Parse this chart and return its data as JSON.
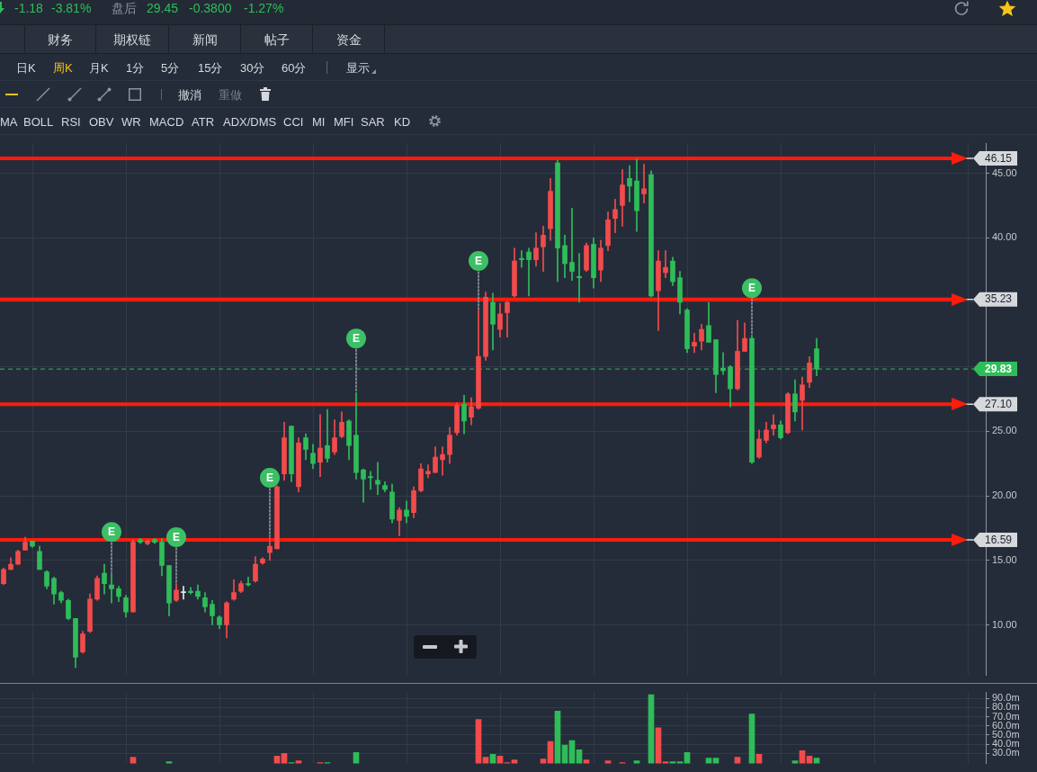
{
  "chart_data": [
    {
      "type": "candlestick",
      "categories": [
        null,
        null,
        null,
        null,
        null,
        null,
        null,
        null,
        null,
        null,
        null,
        null,
        null,
        null,
        null,
        null,
        null,
        null,
        null,
        null,
        null,
        null,
        null,
        null,
        null,
        null,
        null,
        null,
        null,
        null,
        null,
        null,
        null,
        null,
        null,
        null,
        null,
        null,
        null,
        null,
        null,
        null,
        null,
        null,
        null,
        null,
        null,
        null,
        null,
        null,
        null,
        null,
        null,
        null,
        null,
        null,
        null,
        null,
        null,
        null,
        null,
        null,
        null,
        null,
        null,
        null,
        null,
        null,
        null,
        null,
        null,
        null,
        null,
        null,
        null,
        null,
        null,
        null,
        null,
        null,
        null,
        null,
        null,
        null,
        null,
        null,
        null,
        null,
        null,
        null,
        null,
        null,
        null,
        null,
        null,
        null,
        null,
        null,
        null,
        null,
        null,
        null,
        null,
        null,
        null,
        null,
        null,
        null,
        null,
        null,
        null,
        null,
        null,
        null,
        null,
        null,
        null,
        null,
        null,
        null,
        null,
        null,
        null,
        null,
        null,
        null,
        null,
        null,
        null,
        null,
        null,
        null,
        null,
        null,
        null,
        null,
        null
      ],
      "ohlc": [
        [
          13.2,
          14.4,
          13.1,
          14.3
        ],
        [
          14.3,
          15.2,
          14.3,
          14.7
        ],
        [
          14.7,
          15.8,
          14.7,
          15.7
        ],
        [
          15.8,
          16.8,
          15.8,
          16.4
        ],
        [
          16.5,
          16.5,
          16.0,
          16.1
        ],
        [
          15.7,
          16.1,
          14.3,
          14.3
        ],
        [
          14.1,
          14.2,
          12.8,
          13.0
        ],
        [
          13.6,
          13.7,
          11.6,
          12.4
        ],
        [
          12.5,
          12.6,
          11.7,
          11.9
        ],
        [
          11.9,
          12.0,
          10.4,
          10.5
        ],
        [
          10.5,
          10.5,
          6.7,
          7.5
        ],
        [
          7.9,
          9.5,
          7.8,
          9.3
        ],
        [
          9.5,
          12.4,
          9.4,
          12.0
        ],
        [
          12.0,
          13.8,
          11.9,
          13.6
        ],
        [
          14.0,
          14.7,
          12.4,
          13.2
        ],
        [
          13.1,
          14.0,
          11.7,
          12.8
        ],
        [
          12.8,
          13.0,
          11.8,
          12.2
        ],
        [
          12.1,
          12.3,
          10.6,
          11.0
        ],
        [
          11.0,
          16.6,
          11.0,
          16.4
        ],
        [
          16.6,
          16.7,
          16.3,
          16.4
        ],
        [
          16.3,
          16.6,
          16.2,
          16.5
        ],
        [
          16.6,
          16.7,
          16.3,
          16.4
        ],
        [
          16.4,
          16.7,
          13.8,
          14.6
        ],
        [
          14.6,
          14.6,
          10.7,
          11.7
        ],
        [
          11.9,
          13.2,
          11.8,
          12.7
        ],
        [
          12.5,
          13.0,
          12.0,
          12.5
        ],
        [
          12.6,
          12.9,
          12.4,
          12.5
        ],
        [
          12.6,
          13.1,
          12.0,
          12.2
        ],
        [
          12.1,
          12.5,
          11.0,
          11.4
        ],
        [
          11.6,
          11.9,
          10.0,
          10.7
        ],
        [
          10.6,
          10.7,
          9.7,
          10.0
        ],
        [
          10.0,
          11.8,
          9.0,
          11.7
        ],
        [
          12.0,
          13.5,
          11.9,
          12.5
        ],
        [
          12.6,
          13.4,
          12.5,
          13.2
        ],
        [
          13.2,
          13.7,
          13.0,
          13.1
        ],
        [
          13.4,
          15.3,
          13.3,
          14.7
        ],
        [
          14.8,
          15.2,
          14.7,
          15.1
        ],
        [
          15.6,
          16.8,
          15.0,
          16.1
        ],
        [
          15.9,
          20.8,
          15.9,
          20.7
        ],
        [
          21.7,
          25.7,
          21.2,
          24.5
        ],
        [
          25.4,
          25.4,
          21.1,
          21.7
        ],
        [
          20.7,
          24.5,
          20.3,
          24.1
        ],
        [
          24.5,
          24.8,
          22.8,
          23.6
        ],
        [
          23.3,
          24.0,
          22.1,
          22.5
        ],
        [
          22.6,
          26.3,
          21.5,
          23.7
        ],
        [
          23.9,
          26.7,
          22.6,
          22.9
        ],
        [
          23.4,
          25.9,
          23.2,
          24.5
        ],
        [
          24.6,
          26.5,
          24.5,
          25.7
        ],
        [
          25.8,
          25.9,
          22.8,
          23.9
        ],
        [
          24.7,
          28.0,
          21.3,
          21.8
        ],
        [
          22.0,
          22.1,
          19.5,
          21.3
        ],
        [
          21.5,
          21.9,
          20.5,
          21.4
        ],
        [
          21.2,
          22.6,
          20.1,
          20.9
        ],
        [
          20.8,
          21.1,
          20.3,
          20.5
        ],
        [
          20.3,
          20.9,
          17.9,
          18.2
        ],
        [
          18.1,
          19.1,
          16.9,
          18.9
        ],
        [
          18.9,
          19.6,
          17.9,
          18.4
        ],
        [
          18.7,
          20.7,
          18.3,
          20.4
        ],
        [
          20.4,
          22.5,
          20.3,
          22.1
        ],
        [
          21.7,
          22.4,
          21.4,
          21.9
        ],
        [
          21.8,
          23.8,
          21.8,
          23.0
        ],
        [
          22.8,
          23.8,
          21.6,
          23.2
        ],
        [
          23.2,
          25.3,
          22.5,
          24.7
        ],
        [
          24.9,
          27.2,
          24.7,
          27.0
        ],
        [
          27.1,
          27.8,
          24.8,
          25.8
        ],
        [
          26.1,
          27.6,
          25.5,
          26.9
        ],
        [
          26.8,
          34.4,
          26.7,
          30.8
        ],
        [
          30.8,
          35.8,
          30.5,
          35.4
        ],
        [
          35.0,
          35.7,
          31.3,
          33.3
        ],
        [
          32.9,
          34.9,
          32.3,
          34.1
        ],
        [
          34.2,
          35.1,
          32.3,
          35.0
        ],
        [
          35.5,
          39.2,
          35.4,
          38.2
        ],
        [
          38.4,
          39.0,
          37.7,
          38.3
        ],
        [
          38.9,
          39.2,
          35.5,
          38.3
        ],
        [
          38.3,
          40.4,
          37.8,
          39.2
        ],
        [
          39.3,
          40.9,
          37.4,
          40.2
        ],
        [
          40.7,
          44.6,
          39.8,
          43.6
        ],
        [
          45.8,
          46.0,
          36.6,
          39.2
        ],
        [
          39.4,
          40.2,
          36.9,
          38.0
        ],
        [
          38.1,
          42.3,
          36.7,
          37.4
        ],
        [
          37.0,
          38.8,
          35.0,
          36.9
        ],
        [
          37.5,
          39.6,
          37.4,
          39.4
        ],
        [
          39.5,
          40.0,
          36.1,
          36.9
        ],
        [
          37.5,
          39.8,
          36.6,
          39.2
        ],
        [
          39.4,
          42.0,
          39.0,
          41.4
        ],
        [
          41.5,
          43.0,
          40.4,
          42.2
        ],
        [
          42.5,
          45.3,
          40.9,
          44.1
        ],
        [
          44.6,
          45.6,
          42.8,
          44.0
        ],
        [
          44.4,
          46.1,
          40.5,
          42.1
        ],
        [
          43.4,
          45.7,
          42.7,
          43.8
        ],
        [
          44.9,
          45.2,
          35.4,
          35.5
        ],
        [
          35.9,
          39.0,
          32.8,
          38.2
        ],
        [
          37.3,
          39.0,
          36.9,
          37.7
        ],
        [
          38.2,
          38.5,
          36.3,
          36.6
        ],
        [
          36.9,
          37.4,
          34.1,
          35.0
        ],
        [
          34.4,
          34.5,
          31.1,
          31.4
        ],
        [
          31.6,
          32.6,
          31.1,
          31.9
        ],
        [
          32.0,
          33.3,
          31.3,
          32.9
        ],
        [
          33.2,
          35.0,
          31.9,
          31.9
        ],
        [
          32.1,
          32.1,
          28.0,
          29.4
        ],
        [
          29.9,
          31.1,
          29.4,
          29.7
        ],
        [
          30.0,
          30.1,
          26.9,
          28.3
        ],
        [
          28.3,
          33.6,
          28.2,
          31.2
        ],
        [
          31.2,
          33.4,
          31.2,
          32.2
        ],
        [
          32.2,
          32.4,
          22.5,
          22.6
        ],
        [
          23.0,
          25.1,
          22.9,
          24.4
        ],
        [
          24.3,
          25.7,
          24.1,
          25.1
        ],
        [
          25.2,
          26.3,
          24.7,
          25.5
        ],
        [
          25.5,
          25.8,
          24.4,
          24.5
        ],
        [
          24.9,
          28.0,
          24.8,
          27.9
        ],
        [
          27.9,
          29.0,
          25.8,
          26.5
        ],
        [
          27.4,
          29.2,
          25.1,
          28.6
        ],
        [
          28.8,
          30.8,
          28.4,
          30.3
        ],
        [
          31.4,
          32.2,
          29.3,
          29.83
        ],
        null,
        null,
        null,
        null,
        null,
        null,
        null,
        null,
        null,
        null,
        null,
        null,
        null,
        null,
        null,
        null,
        null,
        null,
        null,
        null,
        null,
        null,
        null
      ],
      "colors": [
        "#f24b4b",
        "#f24b4b",
        "#f24b4b",
        "#f24b4b",
        "#2ebd59",
        "#2ebd59",
        "#2ebd59",
        "#2ebd59",
        "#2ebd59",
        "#2ebd59",
        "#2ebd59",
        "#f24b4b",
        "#f24b4b",
        "#f24b4b",
        "#2ebd59",
        "#2ebd59",
        "#2ebd59",
        "#2ebd59",
        "#f24b4b",
        "#2ebd59",
        "#f24b4b",
        "#2ebd59",
        "#2ebd59",
        "#2ebd59",
        "#f24b4b",
        "#e8e8e8",
        "#2ebd59",
        "#2ebd59",
        "#2ebd59",
        "#2ebd59",
        "#2ebd59",
        "#f24b4b",
        "#f24b4b",
        "#f24b4b",
        "#2ebd59",
        "#f24b4b",
        "#f24b4b",
        "#f24b4b",
        "#f24b4b",
        "#f24b4b",
        "#2ebd59",
        "#f24b4b",
        "#2ebd59",
        "#2ebd59",
        "#f24b4b",
        "#2ebd59",
        "#f24b4b",
        "#f24b4b",
        "#2ebd59",
        "#2ebd59",
        "#2ebd59",
        "#2ebd59",
        "#2ebd59",
        "#2ebd59",
        "#2ebd59",
        "#f24b4b",
        "#2ebd59",
        "#f24b4b",
        "#f24b4b",
        "#f24b4b",
        "#f24b4b",
        "#f24b4b",
        "#f24b4b",
        "#f24b4b",
        "#2ebd59",
        "#f24b4b",
        "#f24b4b",
        "#f24b4b",
        "#2ebd59",
        "#f24b4b",
        "#f24b4b",
        "#f24b4b",
        "#2ebd59",
        "#2ebd59",
        "#f24b4b",
        "#f24b4b",
        "#f24b4b",
        "#2ebd59",
        "#2ebd59",
        "#2ebd59",
        "#2ebd59",
        "#f24b4b",
        "#2ebd59",
        "#f24b4b",
        "#f24b4b",
        "#f24b4b",
        "#f24b4b",
        "#2ebd59",
        "#2ebd59",
        "#f24b4b",
        "#2ebd59",
        "#f24b4b",
        "#f24b4b",
        "#2ebd59",
        "#2ebd59",
        "#2ebd59",
        "#f24b4b",
        "#f24b4b",
        "#2ebd59",
        "#2ebd59",
        "#2ebd59",
        "#2ebd59",
        "#f24b4b",
        "#f24b4b",
        "#2ebd59",
        "#f24b4b",
        "#f24b4b",
        "#f24b4b",
        "#2ebd59",
        "#f24b4b",
        "#2ebd59",
        "#f24b4b",
        "#f24b4b",
        "#2ebd59",
        null,
        null,
        null,
        null,
        null,
        null,
        null,
        null,
        null,
        null,
        null,
        null,
        null,
        null,
        null,
        null,
        null,
        null,
        null,
        null,
        null,
        null,
        null
      ],
      "series": [
        {
          "type": "scatter",
          "name": "E",
          "color": "#3cc065",
          "values": [
            null,
            null,
            null,
            null,
            null,
            null,
            null,
            null,
            null,
            null,
            null,
            null,
            null,
            null,
            null,
            17.2,
            null,
            null,
            null,
            null,
            null,
            null,
            null,
            null,
            16.8,
            null,
            null,
            null,
            null,
            null,
            null,
            null,
            null,
            null,
            null,
            null,
            null,
            21.4,
            null,
            null,
            null,
            null,
            null,
            null,
            null,
            null,
            null,
            null,
            null,
            32.2,
            null,
            null,
            null,
            null,
            null,
            null,
            null,
            null,
            null,
            null,
            null,
            null,
            null,
            null,
            null,
            null,
            38.2,
            null,
            null,
            null,
            null,
            null,
            null,
            null,
            null,
            null,
            null,
            null,
            null,
            null,
            null,
            null,
            null,
            null,
            null,
            null,
            null,
            null,
            null,
            null,
            null,
            null,
            null,
            null,
            null,
            null,
            null,
            null,
            null,
            null,
            null,
            null,
            null,
            null,
            36.1,
            null,
            null,
            null,
            null,
            null,
            null,
            null,
            null,
            null,
            null,
            null,
            null,
            null,
            null,
            null,
            null,
            null,
            null,
            null,
            null,
            null,
            null,
            null,
            null,
            null,
            null,
            null,
            null,
            null,
            null,
            null,
            null
          ]
        }
      ],
      "marker": "circle",
      "ylim": [
        6.1,
        47.3
      ],
      "yticks": [
        {
          "value": 10,
          "label": "10.00"
        },
        {
          "value": 15,
          "label": "15.00"
        },
        {
          "value": 20,
          "label": "20.00"
        },
        {
          "value": 25,
          "label": "25.00"
        },
        {
          "value": 30,
          "label": null
        },
        {
          "value": 35,
          "label": null
        },
        {
          "value": 40,
          "label": "40.00"
        },
        {
          "value": 45,
          "label": "45.00"
        }
      ],
      "tick_labels": "y",
      "grid": true,
      "ref_lines": [
        {
          "axis": "y",
          "value": 46.15,
          "label": "46.15",
          "color": "#d6d8dc"
        },
        {
          "axis": "y",
          "value": 35.23,
          "label": "35.23",
          "color": "#d6d8dc"
        },
        {
          "axis": "y",
          "value": 29.83,
          "label": "29.83",
          "color": "#2ebd59",
          "line_style": "dashed"
        },
        {
          "axis": "y",
          "value": 27.1,
          "label": "27.10",
          "color": "#d6d8dc"
        },
        {
          "axis": "y",
          "value": 16.59,
          "label": "16.59",
          "color": "#d6d8dc"
        },
        {
          "axis": "y",
          "value": 46.15,
          "color": "#ff1c0c"
        },
        {
          "axis": "y",
          "value": 35.23,
          "color": "#ff1c0c"
        },
        {
          "axis": "y",
          "value": 27.1,
          "color": "#ff1c0c"
        },
        {
          "axis": "y",
          "value": 16.59,
          "color": "#ff1c0c"
        }
      ],
      "annotations": [
        "-1.18",
        "-3.81%",
        "盘后",
        "29.45",
        "-0.3800",
        "-1.27%",
        "财务",
        "期权链",
        "新闻",
        "帖子",
        "资金",
        "日K",
        "周K",
        "月K",
        "1分",
        "5分",
        "15分",
        "30分",
        "60分",
        "显示",
        "撤消",
        "重做",
        "MA",
        "BOLL",
        "RSI",
        "OBV",
        "WR",
        "MACD",
        "ATR",
        "ADX/DMS",
        "CCI",
        "MI",
        "MFI",
        "SAR",
        "KD"
      ]
    },
    {
      "type": "bar",
      "categories": [
        null,
        null,
        null,
        null,
        null,
        null,
        null,
        null,
        null,
        null,
        null,
        null,
        null,
        null,
        null,
        null,
        null,
        null,
        null,
        null,
        null,
        null,
        null,
        null,
        null,
        null,
        null,
        null,
        null,
        null,
        null,
        null,
        null,
        null,
        null,
        null,
        null,
        null,
        null,
        null,
        null,
        null,
        null,
        null,
        null,
        null,
        null,
        null,
        null,
        null,
        null,
        null,
        null,
        null,
        null,
        null,
        null,
        null,
        null,
        null,
        null,
        null,
        null,
        null,
        null,
        null,
        null,
        null,
        null,
        null,
        null,
        null,
        null,
        null,
        null,
        null,
        null,
        null,
        null,
        null,
        null,
        null,
        null,
        null,
        null,
        null,
        null,
        null,
        null,
        null,
        null,
        null,
        null,
        null,
        null,
        null,
        null,
        null,
        null,
        null,
        null,
        null,
        null,
        null,
        null,
        null,
        null,
        null,
        null,
        null,
        null,
        null,
        null,
        null,
        null,
        null,
        null,
        null,
        null,
        null,
        null,
        null,
        null,
        null,
        null,
        null,
        null,
        null,
        null,
        null,
        null,
        null,
        null,
        null,
        null,
        null,
        null
      ],
      "values": [
        null,
        null,
        null,
        null,
        null,
        null,
        null,
        null,
        null,
        null,
        null,
        null,
        null,
        null,
        null,
        null,
        null,
        null,
        26,
        null,
        null,
        null,
        null,
        21,
        null,
        null,
        null,
        null,
        null,
        null,
        null,
        null,
        null,
        null,
        null,
        null,
        null,
        null,
        27,
        30,
        20,
        22,
        null,
        null,
        20,
        20,
        null,
        null,
        null,
        31,
        null,
        null,
        null,
        null,
        null,
        null,
        null,
        null,
        null,
        null,
        null,
        null,
        null,
        null,
        null,
        null,
        67,
        26,
        29,
        27,
        20,
        23,
        null,
        null,
        null,
        24,
        43,
        76,
        39,
        44,
        34,
        23,
        null,
        null,
        22,
        null,
        20,
        null,
        22,
        null,
        94,
        58,
        21,
        21,
        21,
        31,
        null,
        null,
        25,
        25,
        null,
        null,
        26,
        null,
        73,
        29,
        null,
        null,
        null,
        null,
        22,
        33,
        27,
        25,
        null,
        null,
        null,
        null,
        null,
        null,
        null,
        null,
        null,
        null,
        null,
        null,
        null,
        null,
        null,
        null,
        null,
        null,
        null,
        null,
        null,
        null,
        null
      ],
      "colors": [
        "#f24b4b",
        "#f24b4b",
        "#f24b4b",
        "#f24b4b",
        "#2ebd59",
        "#2ebd59",
        "#2ebd59",
        "#2ebd59",
        "#2ebd59",
        "#2ebd59",
        "#2ebd59",
        "#f24b4b",
        "#f24b4b",
        "#f24b4b",
        "#2ebd59",
        "#2ebd59",
        "#2ebd59",
        "#2ebd59",
        "#f24b4b",
        "#2ebd59",
        "#f24b4b",
        "#2ebd59",
        "#2ebd59",
        "#2ebd59",
        "#f24b4b",
        "#e8e8e8",
        "#2ebd59",
        "#2ebd59",
        "#2ebd59",
        "#2ebd59",
        "#2ebd59",
        "#f24b4b",
        "#f24b4b",
        "#f24b4b",
        "#2ebd59",
        "#f24b4b",
        "#f24b4b",
        "#f24b4b",
        "#f24b4b",
        "#f24b4b",
        "#2ebd59",
        "#f24b4b",
        "#2ebd59",
        "#2ebd59",
        "#f24b4b",
        "#2ebd59",
        "#f24b4b",
        "#f24b4b",
        "#2ebd59",
        "#2ebd59",
        "#2ebd59",
        "#2ebd59",
        "#2ebd59",
        "#2ebd59",
        "#2ebd59",
        "#f24b4b",
        "#2ebd59",
        "#f24b4b",
        "#f24b4b",
        "#f24b4b",
        "#f24b4b",
        "#f24b4b",
        "#f24b4b",
        "#f24b4b",
        "#2ebd59",
        "#f24b4b",
        "#f24b4b",
        "#f24b4b",
        "#2ebd59",
        "#f24b4b",
        "#f24b4b",
        "#f24b4b",
        "#2ebd59",
        "#2ebd59",
        "#f24b4b",
        "#f24b4b",
        "#f24b4b",
        "#2ebd59",
        "#2ebd59",
        "#2ebd59",
        "#2ebd59",
        "#f24b4b",
        "#2ebd59",
        "#f24b4b",
        "#f24b4b",
        "#f24b4b",
        "#f24b4b",
        "#2ebd59",
        "#2ebd59",
        "#f24b4b",
        "#2ebd59",
        "#f24b4b",
        "#f24b4b",
        "#2ebd59",
        "#2ebd59",
        "#2ebd59",
        "#f24b4b",
        "#f24b4b",
        "#2ebd59",
        "#2ebd59",
        "#2ebd59",
        "#2ebd59",
        "#f24b4b",
        "#f24b4b",
        "#2ebd59",
        "#f24b4b",
        "#f24b4b",
        "#f24b4b",
        "#2ebd59",
        "#f24b4b",
        "#2ebd59",
        "#f24b4b",
        "#f24b4b",
        "#2ebd59",
        null,
        null,
        null,
        null,
        null,
        null,
        null,
        null,
        null,
        null,
        null,
        null,
        null,
        null,
        null,
        null,
        null,
        null,
        null,
        null,
        null,
        null,
        null
      ],
      "ylim": [
        19.2,
        96.4
      ],
      "yticks": [
        {
          "value": 30,
          "label": "30.0m"
        },
        {
          "value": 40,
          "label": "40.0m"
        },
        {
          "value": 50,
          "label": "50.0m"
        },
        {
          "value": 60,
          "label": "60.0m"
        },
        {
          "value": 70,
          "label": "70.0m"
        },
        {
          "value": 80,
          "label": "80.0m"
        },
        {
          "value": 90,
          "label": "90.0m"
        }
      ],
      "tick_labels": "y",
      "grid": true
    }
  ]
}
